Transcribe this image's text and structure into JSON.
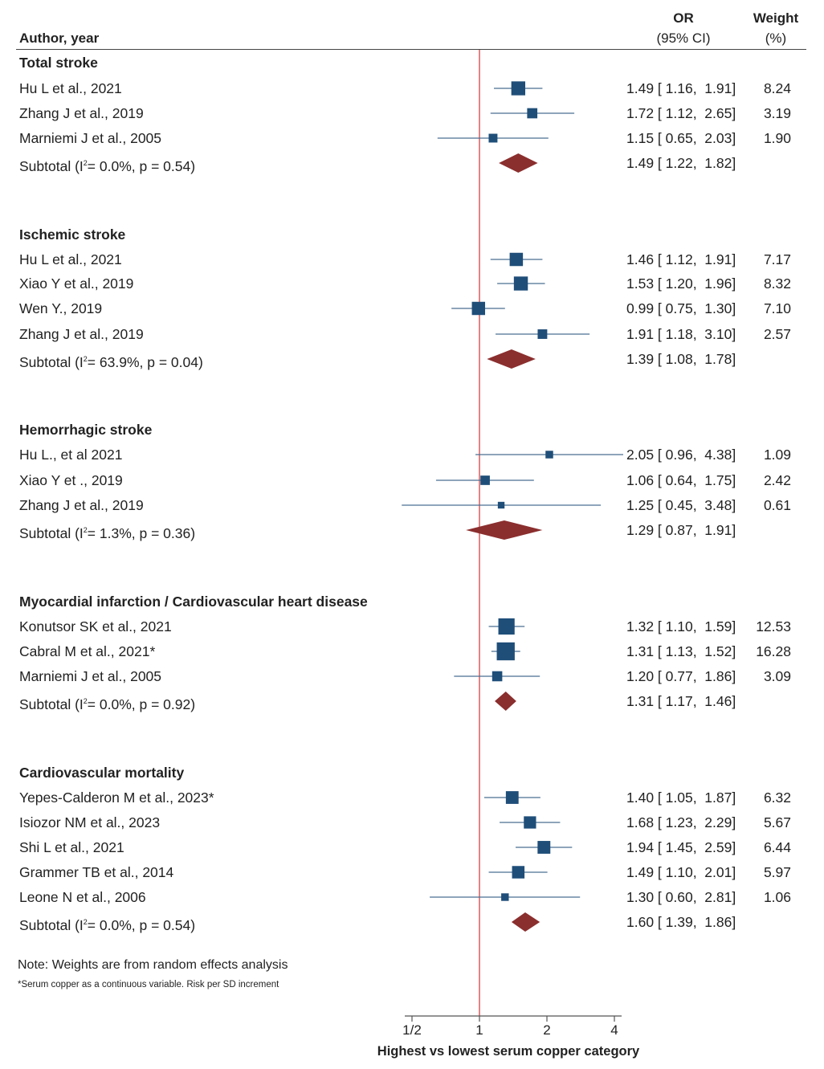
{
  "header": {
    "author_label": "Author, year",
    "or_label": "OR",
    "ci_label": "(95% CI)",
    "weight_label": "Weight",
    "weight_unit": "(%)"
  },
  "colors": {
    "null_line": "#e06666",
    "box": "#1f4e79",
    "ci_line": "#4a6f92",
    "diamond": "#8b2e2e"
  },
  "chart_data": {
    "type": "forest",
    "xaxis_label": "Highest vs lowest serum copper category",
    "xscale": "log",
    "xlim": [
      0.4,
      4.6
    ],
    "ticks": [
      {
        "value": 0.5,
        "label": "1/2"
      },
      {
        "value": 1,
        "label": "1"
      },
      {
        "value": 2,
        "label": "2"
      },
      {
        "value": 4,
        "label": "4"
      }
    ],
    "null_value": 1,
    "rows": [
      {
        "kind": "group",
        "label": "Total stroke"
      },
      {
        "kind": "study",
        "label": "Hu L et al., 2021",
        "or": 1.49,
        "lo": 1.16,
        "hi": 1.91,
        "ci_text": "1.49 [ 1.16,  1.91]",
        "weight": "8.24"
      },
      {
        "kind": "study",
        "label": "Zhang J et al., 2019",
        "or": 1.72,
        "lo": 1.12,
        "hi": 2.65,
        "ci_text": "1.72 [ 1.12,  2.65]",
        "weight": "3.19"
      },
      {
        "kind": "study",
        "label": "Marniemi J et al., 2005",
        "or": 1.15,
        "lo": 0.65,
        "hi": 2.03,
        "ci_text": "1.15 [ 0.65,  2.03]",
        "weight": "1.90"
      },
      {
        "kind": "subtotal",
        "label_pre": "Subtotal (I",
        "label_sup": "2",
        "label_post": "= 0.0%, p = 0.54)",
        "or": 1.49,
        "lo": 1.22,
        "hi": 1.82,
        "ci_text": "1.49 [ 1.22,  1.82]",
        "weight": ""
      },
      {
        "kind": "group",
        "label": "Ischemic stroke"
      },
      {
        "kind": "study",
        "label": "Hu L et al., 2021",
        "or": 1.46,
        "lo": 1.12,
        "hi": 1.91,
        "ci_text": "1.46 [ 1.12,  1.91]",
        "weight": "7.17"
      },
      {
        "kind": "study",
        "label": "Xiao Y et al., 2019",
        "or": 1.53,
        "lo": 1.2,
        "hi": 1.96,
        "ci_text": "1.53 [ 1.20,  1.96]",
        "weight": "8.32"
      },
      {
        "kind": "study",
        "label": "Wen Y., 2019",
        "or": 0.99,
        "lo": 0.75,
        "hi": 1.3,
        "ci_text": "0.99 [ 0.75,  1.30]",
        "weight": "7.10"
      },
      {
        "kind": "study",
        "label": "Zhang J et al., 2019",
        "or": 1.91,
        "lo": 1.18,
        "hi": 3.1,
        "ci_text": "1.91 [ 1.18,  3.10]",
        "weight": "2.57"
      },
      {
        "kind": "subtotal",
        "label_pre": "Subtotal (I",
        "label_sup": "2",
        "label_post": "= 63.9%, p = 0.04)",
        "or": 1.39,
        "lo": 1.08,
        "hi": 1.78,
        "ci_text": "1.39 [ 1.08,  1.78]",
        "weight": ""
      },
      {
        "kind": "group",
        "label": "Hemorrhagic stroke"
      },
      {
        "kind": "study",
        "label": "Hu L., et al 2021",
        "or": 2.05,
        "lo": 0.96,
        "hi": 4.38,
        "ci_text": "2.05 [ 0.96,  4.38]",
        "weight": "1.09"
      },
      {
        "kind": "study",
        "label": "Xiao Y et ., 2019",
        "or": 1.06,
        "lo": 0.64,
        "hi": 1.75,
        "ci_text": "1.06 [ 0.64,  1.75]",
        "weight": "2.42"
      },
      {
        "kind": "study",
        "label": "Zhang J et al., 2019",
        "or": 1.25,
        "lo": 0.45,
        "hi": 3.48,
        "ci_text": "1.25 [ 0.45,  3.48]",
        "weight": "0.61"
      },
      {
        "kind": "subtotal",
        "label_pre": "Subtotal (I",
        "label_sup": "2",
        "label_post": "= 1.3%, p = 0.36)",
        "or": 1.29,
        "lo": 0.87,
        "hi": 1.91,
        "ci_text": "1.29 [ 0.87,  1.91]",
        "weight": ""
      },
      {
        "kind": "group",
        "label": "Myocardial infarction / Cardiovascular heart disease"
      },
      {
        "kind": "study",
        "label": "Konutsor SK et al., 2021",
        "or": 1.32,
        "lo": 1.1,
        "hi": 1.59,
        "ci_text": "1.32 [ 1.10,  1.59]",
        "weight": "12.53"
      },
      {
        "kind": "study",
        "label": "Cabral M et al., 2021*",
        "or": 1.31,
        "lo": 1.13,
        "hi": 1.52,
        "ci_text": "1.31 [ 1.13,  1.52]",
        "weight": "16.28"
      },
      {
        "kind": "study",
        "label": "Marniemi J et al., 2005",
        "or": 1.2,
        "lo": 0.77,
        "hi": 1.86,
        "ci_text": "1.20 [ 0.77,  1.86]",
        "weight": "3.09"
      },
      {
        "kind": "subtotal",
        "label_pre": "Subtotal (I",
        "label_sup": "2",
        "label_post": "= 0.0%, p = 0.92)",
        "or": 1.31,
        "lo": 1.17,
        "hi": 1.46,
        "ci_text": "1.31 [ 1.17,  1.46]",
        "weight": ""
      },
      {
        "kind": "group",
        "label": "Cardiovascular mortality"
      },
      {
        "kind": "study",
        "label": "Yepes-Calderon M et al., 2023*",
        "or": 1.4,
        "lo": 1.05,
        "hi": 1.87,
        "ci_text": "1.40 [ 1.05,  1.87]",
        "weight": "6.32"
      },
      {
        "kind": "study",
        "label": "Isiozor NM et al., 2023",
        "or": 1.68,
        "lo": 1.23,
        "hi": 2.29,
        "ci_text": "1.68 [ 1.23,  2.29]",
        "weight": "5.67"
      },
      {
        "kind": "study",
        "label": "Shi L et al., 2021",
        "or": 1.94,
        "lo": 1.45,
        "hi": 2.59,
        "ci_text": "1.94 [ 1.45,  2.59]",
        "weight": "6.44"
      },
      {
        "kind": "study",
        "label": "Grammer TB et al., 2014",
        "or": 1.49,
        "lo": 1.1,
        "hi": 2.01,
        "ci_text": "1.49 [ 1.10,  2.01]",
        "weight": "5.97"
      },
      {
        "kind": "study",
        "label": "Leone N et al., 2006",
        "or": 1.3,
        "lo": 0.6,
        "hi": 2.81,
        "ci_text": "1.30 [ 0.60,  2.81]",
        "weight": "1.06"
      },
      {
        "kind": "subtotal",
        "label_pre": "Subtotal (I",
        "label_sup": "2",
        "label_post": "= 0.0%, p = 0.54)",
        "or": 1.6,
        "lo": 1.39,
        "hi": 1.86,
        "ci_text": "1.60 [ 1.39,  1.86]",
        "weight": ""
      }
    ]
  },
  "notes": {
    "note1": "Note: Weights are from random effects analysis",
    "note2": "*Serum copper as a continuous variable. Risk per SD increment"
  }
}
